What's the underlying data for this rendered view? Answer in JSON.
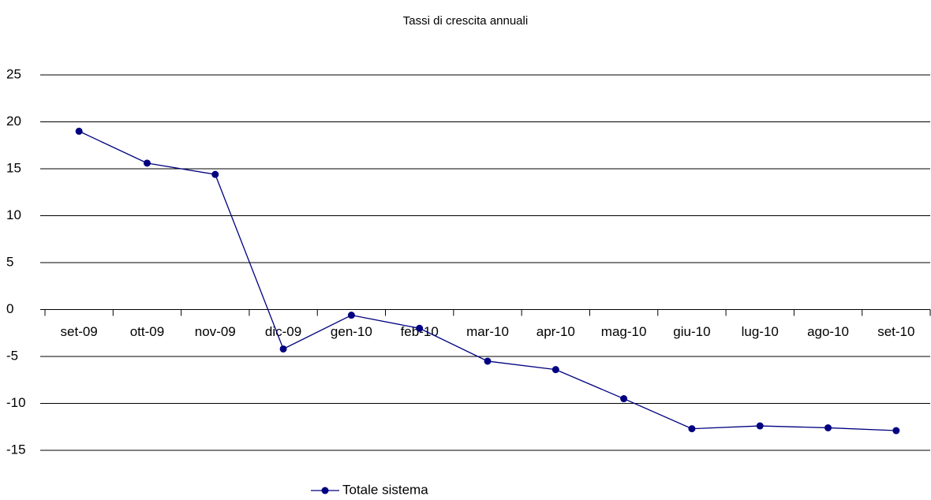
{
  "chart_data": {
    "type": "line",
    "title": "Tassi di crescita annuali",
    "categories": [
      "set-09",
      "ott-09",
      "nov-09",
      "dic-09",
      "gen-10",
      "feb-10",
      "mar-10",
      "apr-10",
      "mag-10",
      "giu-10",
      "lug-10",
      "ago-10",
      "set-10"
    ],
    "series": [
      {
        "name": "Totale sistema",
        "color": "#000080",
        "values": [
          19.0,
          15.6,
          14.4,
          -4.2,
          -0.6,
          -2.0,
          -5.5,
          -6.4,
          -9.5,
          -12.7,
          -12.4,
          -12.6,
          -12.9
        ]
      }
    ],
    "ylim": [
      -15,
      25
    ],
    "yticks": [
      -15,
      -10,
      -5,
      0,
      5,
      10,
      15,
      20,
      25
    ],
    "grid": true,
    "legend": "bottom"
  }
}
